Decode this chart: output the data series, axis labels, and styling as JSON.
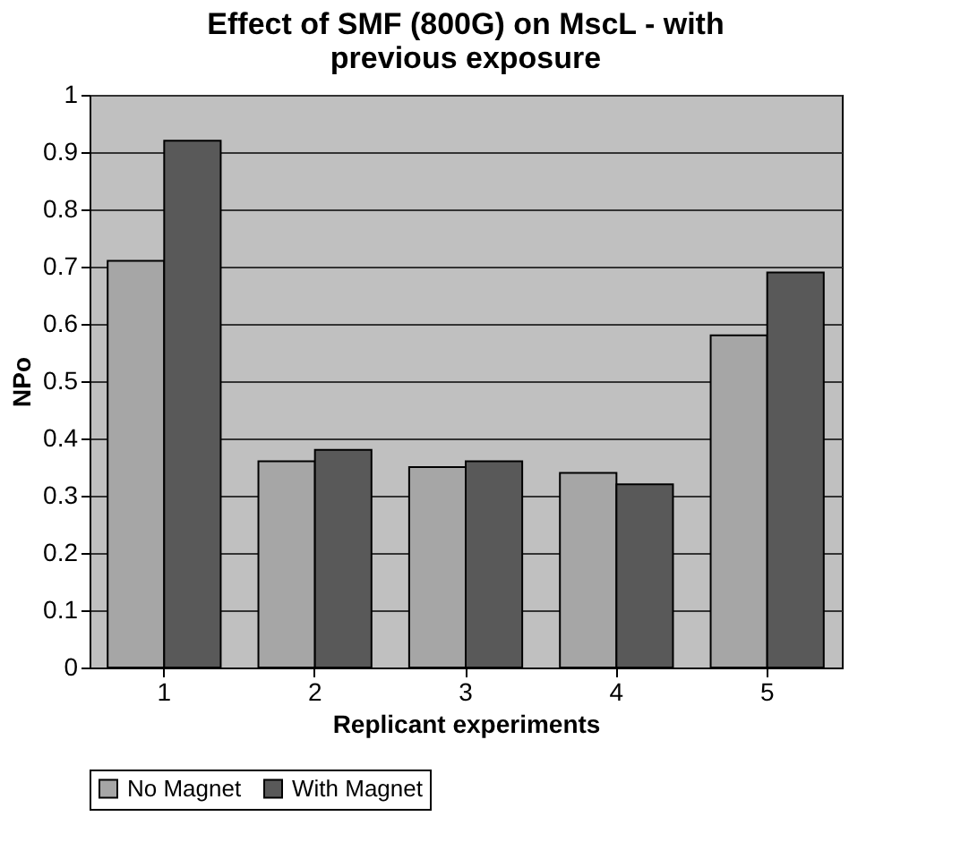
{
  "chart_data": {
    "type": "bar",
    "title": "Effect of SMF (800G) on MscL - with previous exposure",
    "xlabel": "Replicant experiments",
    "ylabel": "NPo",
    "categories": [
      "1",
      "2",
      "3",
      "4",
      "5"
    ],
    "series": [
      {
        "name": "No Magnet",
        "color": "#a6a6a6",
        "values": [
          0.71,
          0.36,
          0.35,
          0.34,
          0.58
        ]
      },
      {
        "name": "With Magnet",
        "color": "#595959",
        "values": [
          0.92,
          0.38,
          0.36,
          0.32,
          0.69
        ]
      }
    ],
    "ylim": [
      0,
      1
    ],
    "yticks": [
      0,
      0.1,
      0.2,
      0.3,
      0.4,
      0.5,
      0.6,
      0.7,
      0.8,
      0.9,
      1
    ],
    "grid": "y",
    "legend": "bottom"
  }
}
